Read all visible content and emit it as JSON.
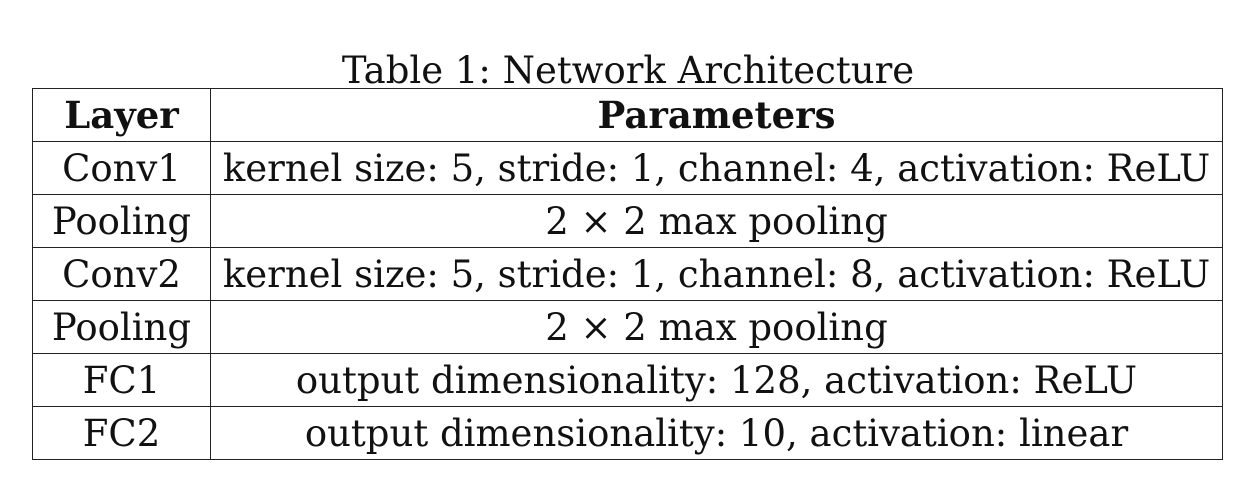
{
  "caption": "Table 1: Network Architecture",
  "table": {
    "headers": [
      "Layer",
      "Parameters"
    ],
    "rows": [
      [
        "Conv1",
        "kernel size: 5, stride: 1, channel: 4, activation: ReLU"
      ],
      [
        "Pooling",
        "2 × 2 max pooling"
      ],
      [
        "Conv2",
        "kernel size: 5, stride: 1, channel: 8, activation: ReLU"
      ],
      [
        "Pooling",
        "2 × 2 max pooling"
      ],
      [
        "FC1",
        "output dimensionality: 128, activation: ReLU"
      ],
      [
        "FC2",
        "output dimensionality: 10, activation: linear"
      ]
    ]
  }
}
